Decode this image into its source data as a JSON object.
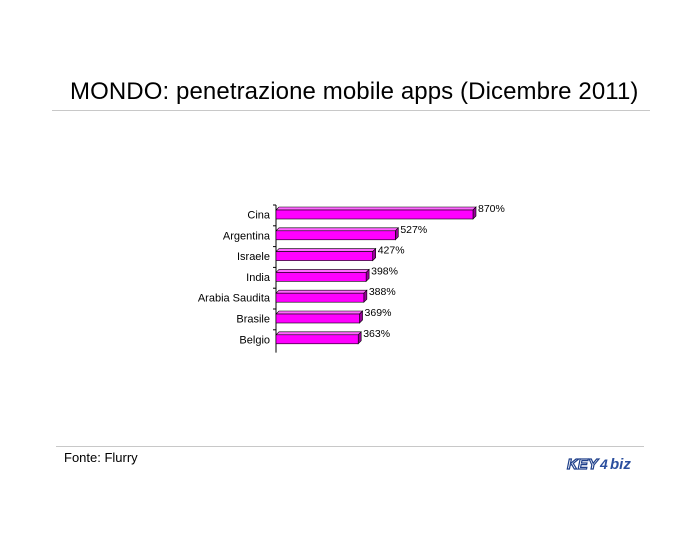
{
  "title": "MONDO: penetrazione mobile apps (Dicembre 2011)",
  "footnote": "Fonte: Flurry",
  "logo": {
    "text_key": "KEY",
    "text_biz": "biz"
  },
  "colors": {
    "bar_front": "#ff00ff",
    "bar_top": "#ff66ff",
    "bar_side": "#99009a",
    "axis": "#000000"
  },
  "chart_data": {
    "type": "bar",
    "orientation": "horizontal",
    "categories": [
      "Cina",
      "Argentina",
      "Israele",
      "India",
      "Arabia Saudita",
      "Brasile",
      "Belgio"
    ],
    "values": [
      870,
      527,
      427,
      398,
      388,
      369,
      363
    ],
    "value_labels": [
      "870%",
      "527%",
      "427%",
      "398%",
      "388%",
      "369%",
      "363%"
    ],
    "xlim": [
      0,
      870
    ],
    "grid": false,
    "legend": "none"
  }
}
